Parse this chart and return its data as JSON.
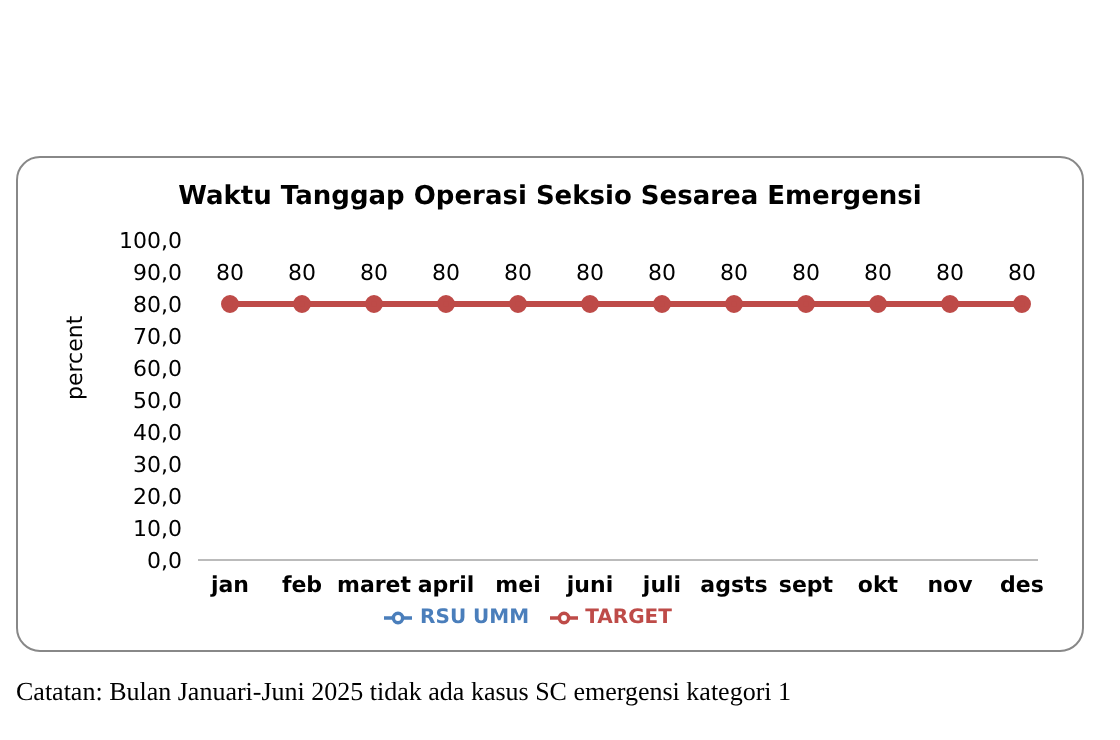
{
  "chart_data": {
    "type": "line",
    "title": "Waktu Tanggap Operasi Seksio Sesarea Emergensi",
    "ylabel": "percent",
    "categories": [
      "jan",
      "feb",
      "maret",
      "april",
      "mei",
      "juni",
      "juli",
      "agsts",
      "sept",
      "okt",
      "nov",
      "des"
    ],
    "series": [
      {
        "name": "RSU UMM",
        "color": "#4a7ebb",
        "values": [
          null,
          null,
          null,
          null,
          null,
          null,
          null,
          null,
          null,
          null,
          null,
          null
        ]
      },
      {
        "name": "TARGET",
        "color": "#be4b48",
        "values": [
          80,
          80,
          80,
          80,
          80,
          80,
          80,
          80,
          80,
          80,
          80,
          80
        ]
      }
    ],
    "ylim": [
      0,
      100
    ],
    "yticks": [
      {
        "value": 0,
        "label": "0,0"
      },
      {
        "value": 10,
        "label": "10,0"
      },
      {
        "value": 20,
        "label": "20,0"
      },
      {
        "value": 30,
        "label": "30,0"
      },
      {
        "value": 40,
        "label": "40,0"
      },
      {
        "value": 50,
        "label": "50,0"
      },
      {
        "value": 60,
        "label": "60,0"
      },
      {
        "value": 70,
        "label": "70,0"
      },
      {
        "value": 80,
        "label": "80,0"
      },
      {
        "value": 90,
        "label": "90,0"
      },
      {
        "value": 100,
        "label": "100,0"
      }
    ],
    "grid": false,
    "legend": "bottom",
    "marker": "circle",
    "line_style": "solid",
    "data_labels": true,
    "annotations": [
      "Catatan: Bulan Januari-Juni 2025 tidak ada kasus SC emergensi kategori 1"
    ]
  }
}
